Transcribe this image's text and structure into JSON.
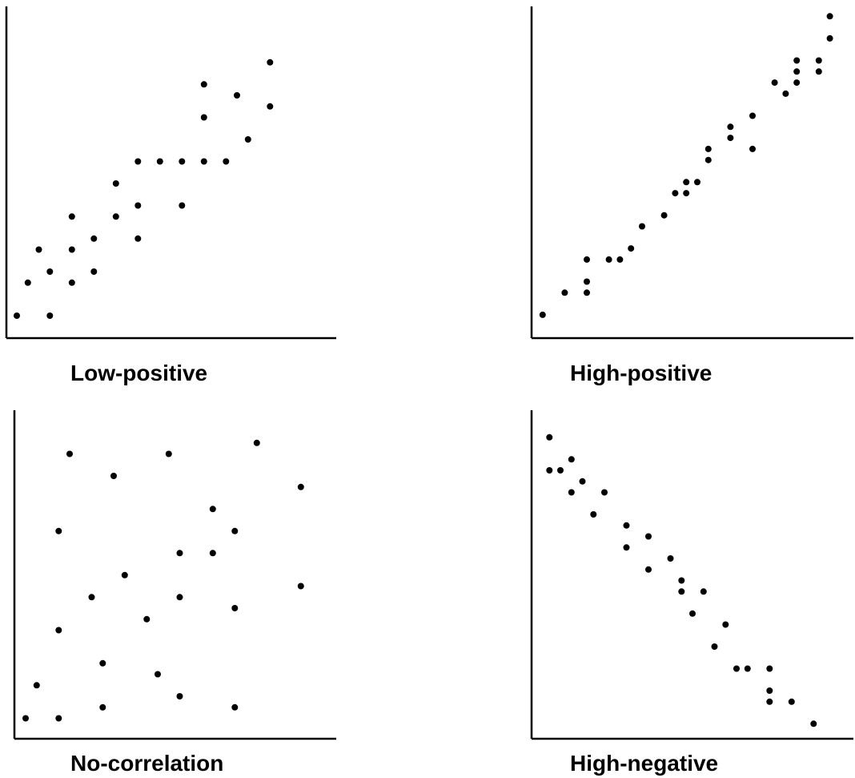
{
  "chart_data": [
    {
      "type": "scatter",
      "title": "Low-positive",
      "xlim": [
        0,
        30
      ],
      "ylim": [
        0,
        30
      ],
      "points": [
        [
          1,
          2
        ],
        [
          2,
          5
        ],
        [
          3,
          8
        ],
        [
          4,
          6
        ],
        [
          4,
          2
        ],
        [
          6,
          5
        ],
        [
          6,
          8
        ],
        [
          6,
          11
        ],
        [
          8,
          6
        ],
        [
          8,
          9
        ],
        [
          10,
          11
        ],
        [
          10,
          14
        ],
        [
          12,
          9
        ],
        [
          12,
          12
        ],
        [
          12,
          16
        ],
        [
          14,
          16
        ],
        [
          16,
          12
        ],
        [
          16,
          16
        ],
        [
          18,
          16
        ],
        [
          18,
          20
        ],
        [
          18,
          23
        ],
        [
          20,
          16
        ],
        [
          21,
          22
        ],
        [
          22,
          18
        ],
        [
          24,
          21
        ],
        [
          24,
          25
        ]
      ]
    },
    {
      "type": "scatter",
      "title": "High-positive",
      "xlim": [
        0,
        30
      ],
      "ylim": [
        0,
        30
      ],
      "points": [
        [
          1,
          2
        ],
        [
          3,
          4
        ],
        [
          5,
          4
        ],
        [
          5,
          5
        ],
        [
          5,
          7
        ],
        [
          7,
          7
        ],
        [
          8,
          7
        ],
        [
          9,
          8
        ],
        [
          10,
          10
        ],
        [
          12,
          11
        ],
        [
          13,
          13
        ],
        [
          14,
          13
        ],
        [
          14,
          14
        ],
        [
          16,
          16
        ],
        [
          16,
          17
        ],
        [
          15,
          14
        ],
        [
          18,
          19
        ],
        [
          18,
          18
        ],
        [
          20,
          17
        ],
        [
          20,
          20
        ],
        [
          22,
          23
        ],
        [
          24,
          23
        ],
        [
          24,
          24
        ],
        [
          23,
          22
        ],
        [
          24,
          25
        ],
        [
          26,
          24
        ],
        [
          26,
          25
        ],
        [
          27,
          27
        ],
        [
          27,
          29
        ]
      ]
    },
    {
      "type": "scatter",
      "title": "No-correlation",
      "xlim": [
        0,
        30
      ],
      "ylim": [
        0,
        30
      ],
      "points": [
        [
          1,
          2
        ],
        [
          2,
          5
        ],
        [
          4,
          2
        ],
        [
          4,
          10
        ],
        [
          4,
          19
        ],
        [
          5,
          26
        ],
        [
          7,
          13
        ],
        [
          8,
          7
        ],
        [
          8,
          3
        ],
        [
          9,
          24
        ],
        [
          10,
          15
        ],
        [
          12,
          11
        ],
        [
          13,
          6
        ],
        [
          14,
          26
        ],
        [
          15,
          17
        ],
        [
          15,
          13
        ],
        [
          15,
          4
        ],
        [
          18,
          21
        ],
        [
          18,
          17
        ],
        [
          20,
          19
        ],
        [
          20,
          12
        ],
        [
          20,
          3
        ],
        [
          22,
          27
        ],
        [
          26,
          23
        ],
        [
          26,
          14
        ]
      ]
    },
    {
      "type": "scatter",
      "title": "High-negative",
      "xlim": [
        0,
        30
      ],
      "ylim": [
        0,
        30
      ],
      "points": [
        [
          1,
          27
        ],
        [
          1,
          24
        ],
        [
          2,
          24
        ],
        [
          3,
          25
        ],
        [
          3,
          22
        ],
        [
          4,
          23
        ],
        [
          5,
          20
        ],
        [
          6,
          22
        ],
        [
          8,
          19
        ],
        [
          8,
          17
        ],
        [
          10,
          18
        ],
        [
          10,
          15
        ],
        [
          12,
          16
        ],
        [
          13,
          14
        ],
        [
          13,
          13
        ],
        [
          14,
          11
        ],
        [
          15,
          13
        ],
        [
          16,
          8
        ],
        [
          17,
          10
        ],
        [
          18,
          6
        ],
        [
          19,
          6
        ],
        [
          21,
          6
        ],
        [
          21,
          4
        ],
        [
          21,
          3
        ],
        [
          23,
          3
        ],
        [
          25,
          1
        ]
      ]
    }
  ]
}
